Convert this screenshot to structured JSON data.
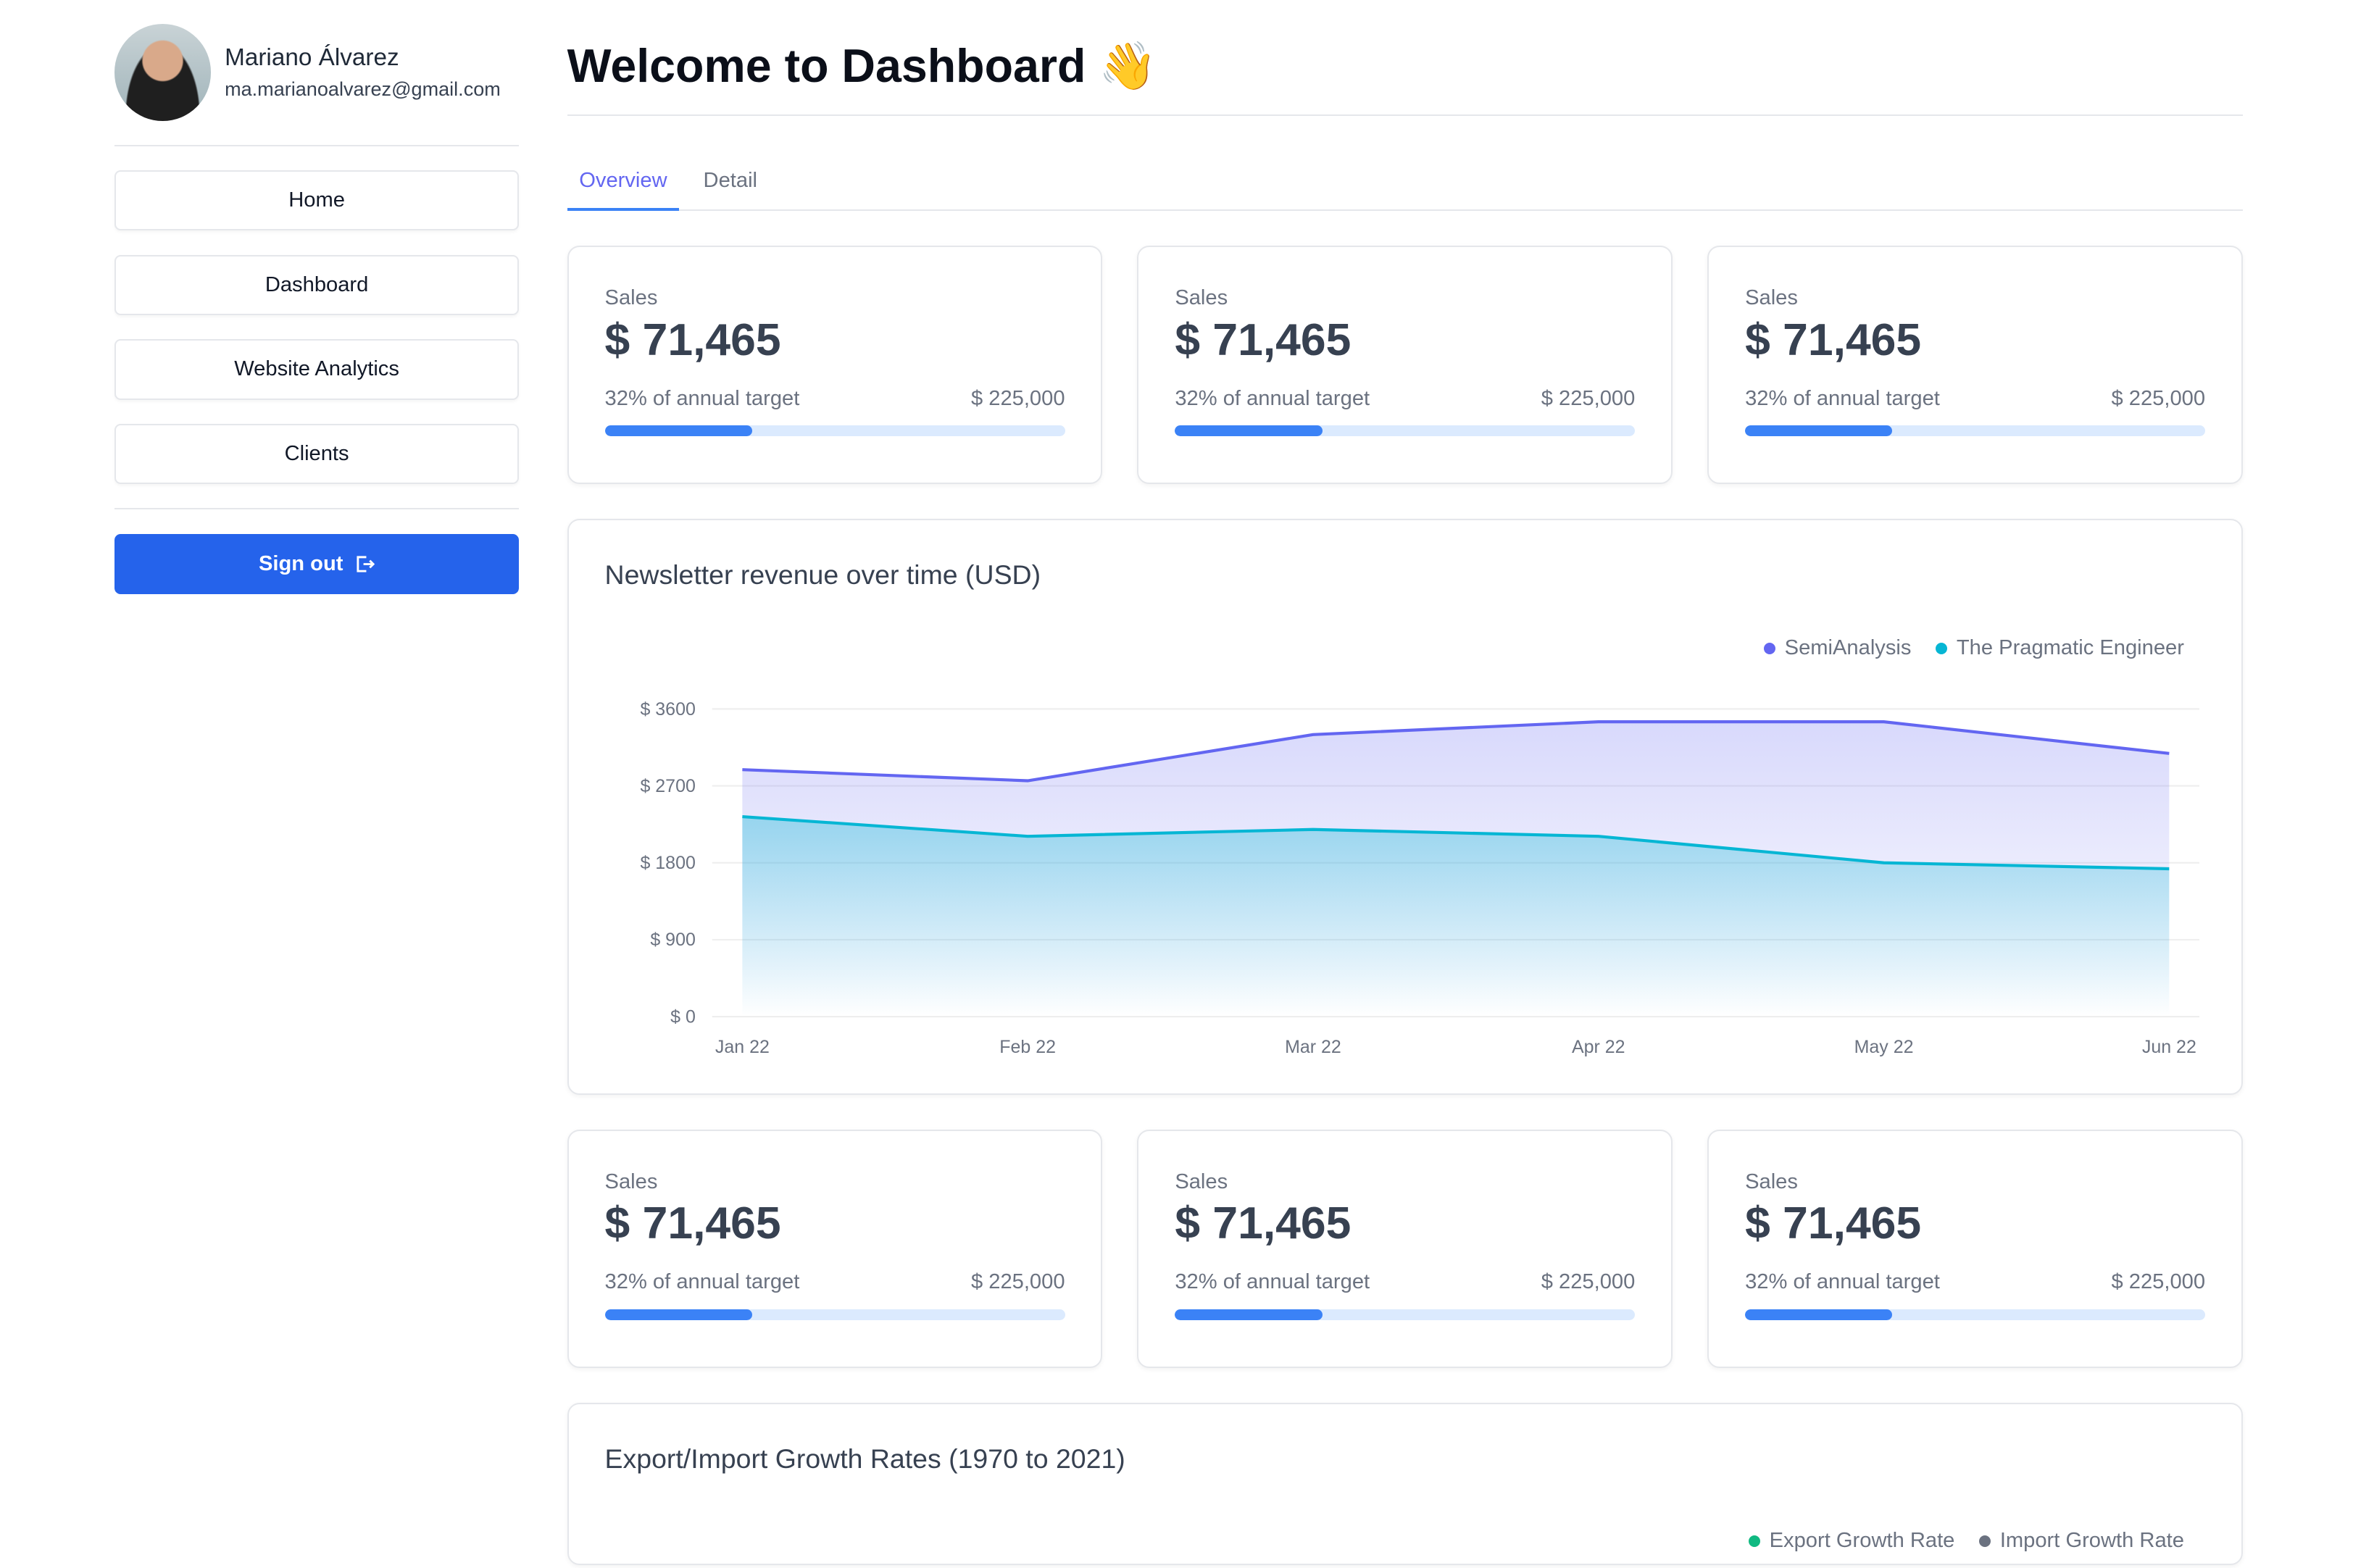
{
  "profile": {
    "name": "Mariano Álvarez",
    "email": "ma.marianoalvarez@gmail.com"
  },
  "nav": [
    {
      "label": "Home"
    },
    {
      "label": "Dashboard"
    },
    {
      "label": "Website Analytics"
    },
    {
      "label": "Clients"
    }
  ],
  "signout": {
    "label": "Sign out",
    "icon": "logout-icon"
  },
  "header": {
    "title": "Welcome to Dashboard",
    "emoji": "👋"
  },
  "tabs": [
    {
      "label": "Overview",
      "active": true
    },
    {
      "label": "Detail",
      "active": false
    }
  ],
  "cards": [
    {
      "label": "Sales",
      "value": "$ 71,465",
      "note": "32% of annual target",
      "target": "$ 225,000",
      "progress": 32
    },
    {
      "label": "Sales",
      "value": "$ 71,465",
      "note": "32% of annual target",
      "target": "$ 225,000",
      "progress": 32
    },
    {
      "label": "Sales",
      "value": "$ 71,465",
      "note": "32% of annual target",
      "target": "$ 225,000",
      "progress": 32
    },
    {
      "label": "Sales",
      "value": "$ 71,465",
      "note": "32% of annual target",
      "target": "$ 225,000",
      "progress": 32
    },
    {
      "label": "Sales",
      "value": "$ 71,465",
      "note": "32% of annual target",
      "target": "$ 225,000",
      "progress": 32
    },
    {
      "label": "Sales",
      "value": "$ 71,465",
      "note": "32% of annual target",
      "target": "$ 225,000",
      "progress": 32
    }
  ],
  "chart_data": [
    {
      "type": "area",
      "title": "Newsletter revenue over time (USD)",
      "categories": [
        "Jan 22",
        "Feb 22",
        "Mar 22",
        "Apr 22",
        "May 22",
        "Jun 22"
      ],
      "yticks": [
        "$ 0",
        "$ 900",
        "$ 1800",
        "$ 2700",
        "$ 3600"
      ],
      "ylim": [
        0,
        3600
      ],
      "grid": true,
      "legend": "top-right",
      "series": [
        {
          "name": "SemiAnalysis",
          "color": "#6366f1",
          "values": [
            2890,
            2760,
            3300,
            3450,
            3450,
            3080
          ]
        },
        {
          "name": "The Pragmatic Engineer",
          "color": "#06b6d4",
          "values": [
            2340,
            2110,
            2190,
            2110,
            1800,
            1730
          ]
        }
      ]
    },
    {
      "type": "line",
      "title": "Export/Import Growth Rates (1970 to 2021)",
      "legend": "top-right",
      "series": [
        {
          "name": "Export Growth Rate",
          "color": "#10b981"
        },
        {
          "name": "Import Growth Rate",
          "color": "#6b7280"
        }
      ]
    }
  ]
}
